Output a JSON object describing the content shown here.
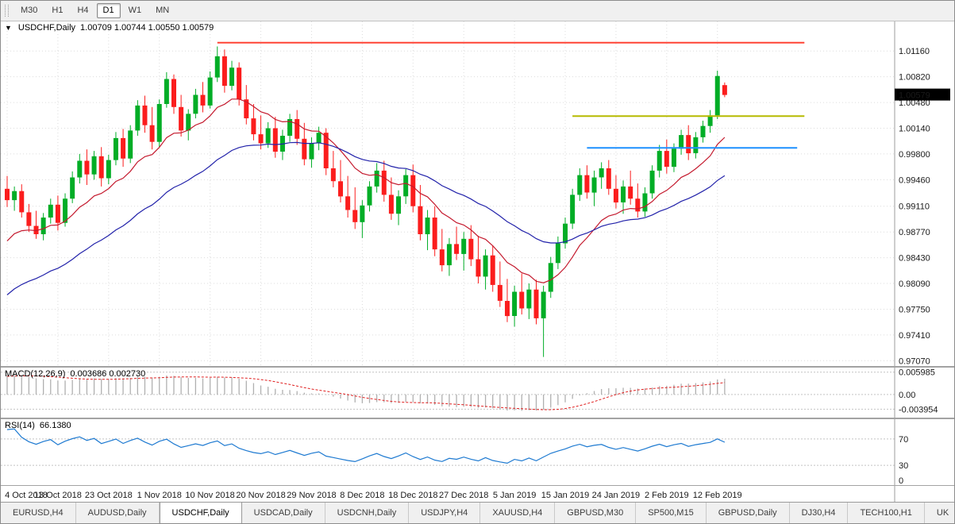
{
  "toolbar": {
    "timeframes": [
      "M30",
      "H1",
      "H4",
      "D1",
      "W1",
      "MN"
    ],
    "active": "D1"
  },
  "chart": {
    "dropdown_arrow": "▼",
    "symbol_label": "USDCHF,Daily",
    "ohlc_text": "1.00709 1.00744 1.00550 1.00579",
    "current_price_label": "1.00579"
  },
  "indicators": {
    "macd": {
      "name": "MACD(12,26,9)",
      "values_text": "0.003686 0.002730",
      "levels": [
        {
          "value": 0.005985,
          "label": "0.005985"
        },
        {
          "value": 0,
          "label": "0.00"
        },
        {
          "value": -0.003954,
          "label": "-0.003954"
        }
      ]
    },
    "rsi": {
      "name": "RSI(14)",
      "value_text": "66.1380",
      "levels": [
        {
          "value": 70,
          "label": "70"
        },
        {
          "value": 30,
          "label": "30"
        },
        {
          "value": 0,
          "label": "0"
        }
      ]
    }
  },
  "tabs": {
    "items": [
      "EURUSD,H4",
      "AUDUSD,Daily",
      "USDCHF,Daily",
      "USDCAD,Daily",
      "USDCNH,Daily",
      "USDJPY,H4",
      "XAUUSD,H4",
      "GBPUSD,M30",
      "SP500,M15",
      "GBPUSD,Daily",
      "DJ30,H4",
      "TECH100,H1",
      "UK"
    ],
    "active": "USDCHF,Daily"
  },
  "chart_data": {
    "type": "candlestick",
    "title": "USDCHF Daily",
    "price_axis": {
      "min": 0.97,
      "max": 1.0155,
      "ticks": [
        {
          "value": 1.0116,
          "label": "1.01160"
        },
        {
          "value": 1.0082,
          "label": "1.00820"
        },
        {
          "value": 1.0048,
          "label": "1.00480"
        },
        {
          "value": 1.0014,
          "label": "1.00140"
        },
        {
          "value": 0.998,
          "label": "0.99800"
        },
        {
          "value": 0.9946,
          "label": "0.99460"
        },
        {
          "value": 0.9911,
          "label": "0.99110"
        },
        {
          "value": 0.9877,
          "label": "0.98770"
        },
        {
          "value": 0.9843,
          "label": "0.98430"
        },
        {
          "value": 0.9809,
          "label": "0.98090"
        },
        {
          "value": 0.9775,
          "label": "0.97750"
        },
        {
          "value": 0.9741,
          "label": "0.97410"
        },
        {
          "value": 0.9707,
          "label": "0.97070"
        }
      ]
    },
    "date_ticks": [
      {
        "index": 0,
        "label": "4 Oct 2018"
      },
      {
        "index": 7,
        "label": "13 Oct 2018"
      },
      {
        "index": 14,
        "label": "23 Oct 2018"
      },
      {
        "index": 21,
        "label": "1 Nov 2018"
      },
      {
        "index": 28,
        "label": "10 Nov 2018"
      },
      {
        "index": 35,
        "label": "20 Nov 2018"
      },
      {
        "index": 42,
        "label": "29 Nov 2018"
      },
      {
        "index": 49,
        "label": "8 Dec 2018"
      },
      {
        "index": 56,
        "label": "18 Dec 2018"
      },
      {
        "index": 63,
        "label": "27 Dec 2018"
      },
      {
        "index": 70,
        "label": "5 Jan 2019"
      },
      {
        "index": 77,
        "label": "15 Jan 2019"
      },
      {
        "index": 84,
        "label": "24 Jan 2019"
      },
      {
        "index": 91,
        "label": "2 Feb 2019"
      },
      {
        "index": 98,
        "label": "12 Feb 2019"
      }
    ],
    "candles_ohlc": [
      [
        0.9934,
        0.9951,
        0.991,
        0.9919
      ],
      [
        0.9919,
        0.9937,
        0.9905,
        0.9931
      ],
      [
        0.9931,
        0.994,
        0.9896,
        0.9903
      ],
      [
        0.9903,
        0.9914,
        0.9877,
        0.9885
      ],
      [
        0.9885,
        0.9905,
        0.9868,
        0.9874
      ],
      [
        0.9874,
        0.9902,
        0.9866,
        0.9896
      ],
      [
        0.9896,
        0.9921,
        0.9888,
        0.9913
      ],
      [
        0.9913,
        0.9925,
        0.9879,
        0.9889
      ],
      [
        0.9889,
        0.9928,
        0.9884,
        0.9921
      ],
      [
        0.9921,
        0.9957,
        0.9915,
        0.9949
      ],
      [
        0.9949,
        0.998,
        0.9941,
        0.9971
      ],
      [
        0.9971,
        0.9986,
        0.9939,
        0.9953
      ],
      [
        0.9953,
        0.9984,
        0.9946,
        0.9977
      ],
      [
        0.9977,
        0.9989,
        0.9937,
        0.9948
      ],
      [
        0.9948,
        0.9979,
        0.994,
        0.9972
      ],
      [
        0.9972,
        1.0009,
        0.9965,
        1.0001
      ],
      [
        1.0001,
        1.0013,
        0.9963,
        0.9974
      ],
      [
        0.9974,
        1.0018,
        0.9968,
        1.0011
      ],
      [
        1.0011,
        1.0051,
        1.0004,
        1.0044
      ],
      [
        1.0044,
        1.0057,
        1.0008,
        1.0018
      ],
      [
        1.0018,
        1.0042,
        0.9986,
        0.9996
      ],
      [
        0.9996,
        1.0052,
        0.9989,
        1.0046
      ],
      [
        1.0046,
        1.0088,
        1.0041,
        1.0079
      ],
      [
        1.0079,
        1.0085,
        1.0033,
        1.0042
      ],
      [
        1.0042,
        1.0058,
        1.0003,
        1.0011
      ],
      [
        1.0011,
        1.0039,
        0.9998,
        1.0033
      ],
      [
        1.0033,
        1.0066,
        1.0027,
        1.0058
      ],
      [
        1.0058,
        1.0075,
        1.0035,
        1.0044
      ],
      [
        1.0044,
        1.0089,
        1.004,
        1.0081
      ],
      [
        1.0081,
        1.0122,
        1.0075,
        1.0109
      ],
      [
        1.0109,
        1.0118,
        1.0061,
        1.007
      ],
      [
        1.007,
        1.0103,
        1.0064,
        1.0094
      ],
      [
        1.0094,
        1.0101,
        1.0044,
        1.0052
      ],
      [
        1.0052,
        1.0071,
        1.0019,
        1.0027
      ],
      [
        1.0027,
        1.0046,
        0.9998,
        1.0006
      ],
      [
        1.0006,
        1.0031,
        0.9986,
        0.9994
      ],
      [
        0.9994,
        1.0022,
        0.9988,
        1.0014
      ],
      [
        1.0014,
        1.0029,
        0.9975,
        0.9983
      ],
      [
        0.9983,
        1.0012,
        0.9972,
        1.0004
      ],
      [
        1.0004,
        1.0033,
        0.9996,
        1.0026
      ],
      [
        1.0026,
        1.0038,
        0.9992,
        1.0
      ],
      [
        1.0,
        1.0021,
        0.9965,
        0.9973
      ],
      [
        0.9973,
        1.0002,
        0.9962,
        0.9994
      ],
      [
        0.9994,
        1.0016,
        0.9985,
        1.0008
      ],
      [
        1.0008,
        1.0014,
        0.9952,
        0.9961
      ],
      [
        0.9961,
        0.9984,
        0.9936,
        0.9944
      ],
      [
        0.9944,
        0.9972,
        0.9916,
        0.9924
      ],
      [
        0.9924,
        0.9951,
        0.9896,
        0.9906
      ],
      [
        0.9906,
        0.9936,
        0.9881,
        0.989
      ],
      [
        0.989,
        0.9919,
        0.9869,
        0.9912
      ],
      [
        0.9912,
        0.9944,
        0.9904,
        0.9937
      ],
      [
        0.9937,
        0.9968,
        0.9929,
        0.9958
      ],
      [
        0.9958,
        0.9971,
        0.9917,
        0.9926
      ],
      [
        0.9926,
        0.9949,
        0.9893,
        0.9901
      ],
      [
        0.9901,
        0.9932,
        0.9886,
        0.9924
      ],
      [
        0.9924,
        0.996,
        0.9914,
        0.9952
      ],
      [
        0.9952,
        0.9966,
        0.9903,
        0.9911
      ],
      [
        0.9911,
        0.9939,
        0.9866,
        0.9874
      ],
      [
        0.9874,
        0.9906,
        0.9853,
        0.9896
      ],
      [
        0.9896,
        0.9911,
        0.9845,
        0.9854
      ],
      [
        0.9854,
        0.9881,
        0.9825,
        0.9833
      ],
      [
        0.9833,
        0.9869,
        0.9819,
        0.9861
      ],
      [
        0.9861,
        0.9884,
        0.984,
        0.9848
      ],
      [
        0.9848,
        0.9877,
        0.9826,
        0.9868
      ],
      [
        0.9868,
        0.9886,
        0.9832,
        0.9841
      ],
      [
        0.9841,
        0.9872,
        0.9809,
        0.9818
      ],
      [
        0.9818,
        0.9854,
        0.9801,
        0.9846
      ],
      [
        0.9846,
        0.9859,
        0.9798,
        0.9807
      ],
      [
        0.9807,
        0.9838,
        0.9778,
        0.9786
      ],
      [
        0.9786,
        0.9815,
        0.9758,
        0.9766
      ],
      [
        0.9766,
        0.9806,
        0.9752,
        0.9798
      ],
      [
        0.9798,
        0.9822,
        0.9768,
        0.9776
      ],
      [
        0.9776,
        0.9809,
        0.9762,
        0.9801
      ],
      [
        0.9801,
        0.9814,
        0.9755,
        0.9763
      ],
      [
        0.9763,
        0.9806,
        0.9712,
        0.9798
      ],
      [
        0.9798,
        0.9844,
        0.979,
        0.9836
      ],
      [
        0.9836,
        0.9871,
        0.9828,
        0.9862
      ],
      [
        0.9862,
        0.9896,
        0.9855,
        0.9888
      ],
      [
        0.9888,
        0.9934,
        0.9881,
        0.9926
      ],
      [
        0.9926,
        0.9961,
        0.9918,
        0.9952
      ],
      [
        0.9952,
        0.9965,
        0.9921,
        0.9929
      ],
      [
        0.9929,
        0.9958,
        0.9911,
        0.9949
      ],
      [
        0.9949,
        0.9969,
        0.9934,
        0.9961
      ],
      [
        0.9961,
        0.9972,
        0.9926,
        0.9934
      ],
      [
        0.9934,
        0.9952,
        0.9908,
        0.9916
      ],
      [
        0.9916,
        0.9945,
        0.9901,
        0.9937
      ],
      [
        0.9937,
        0.9958,
        0.9913,
        0.9921
      ],
      [
        0.9921,
        0.9941,
        0.9896,
        0.9904
      ],
      [
        0.9904,
        0.9936,
        0.9897,
        0.9928
      ],
      [
        0.9928,
        0.9965,
        0.9921,
        0.9958
      ],
      [
        0.9958,
        0.9992,
        0.9949,
        0.9984
      ],
      [
        0.9984,
        0.9999,
        0.9954,
        0.9963
      ],
      [
        0.9963,
        0.9994,
        0.9956,
        0.9987
      ],
      [
        0.9987,
        1.0012,
        0.9979,
        1.0005
      ],
      [
        1.0005,
        1.0018,
        0.9972,
        0.9981
      ],
      [
        0.9981,
        1.0009,
        0.9974,
        1.0002
      ],
      [
        1.0002,
        1.0024,
        0.9995,
        1.0017
      ],
      [
        1.0017,
        1.0038,
        1.0008,
        1.0031
      ],
      [
        1.0031,
        1.009,
        1.0026,
        1.0083
      ],
      [
        1.00709,
        1.00744,
        1.0055,
        1.00579
      ]
    ],
    "warmup_closes": [
      0.9608,
      0.9615,
      0.9622,
      0.9631,
      0.9625,
      0.9638,
      0.965,
      0.9644,
      0.9659,
      0.9671,
      0.9665,
      0.968,
      0.9694,
      0.9688,
      0.9702,
      0.9717,
      0.971,
      0.9726,
      0.9741,
      0.9735,
      0.975,
      0.9764,
      0.9757,
      0.9772,
      0.9788,
      0.9781,
      0.9796,
      0.9812,
      0.9806,
      0.9821,
      0.9837,
      0.983,
      0.9846,
      0.9862,
      0.9855,
      0.9871,
      0.9888,
      0.988,
      0.9897,
      0.9914
    ],
    "moving_averages": [
      {
        "name": "ma-fast",
        "period": 13,
        "method": "ema",
        "color": "#c41a2e"
      },
      {
        "name": "ma-slow",
        "period": 34,
        "method": "ema",
        "color": "#2222aa"
      }
    ],
    "trendlines": [
      {
        "name": "resistance-line",
        "price": 1.0127,
        "start_index": 29,
        "end_index": 110,
        "color": "#ff4334"
      },
      {
        "name": "minor-resistance-line",
        "price": 1.003,
        "start_index": 78,
        "end_index": 110,
        "color": "#b6ba00"
      },
      {
        "name": "support-line",
        "price": 0.9988,
        "start_index": 80,
        "end_index": 109,
        "color": "#1e90ff"
      }
    ],
    "macd_axis": {
      "min": -0.0062,
      "max": 0.0072
    },
    "rsi_axis": {
      "min": 0,
      "max": 100
    },
    "colors": {
      "up": "#00ad26",
      "down": "#fb1d1d",
      "grid": "#dcdcdc",
      "level_dash": "#c4c4c4",
      "axis_line": "#9c9c9c",
      "macd_hist": "#b0b0b0",
      "macd_signal": "#e02020",
      "rsi_line": "#1e7ad1",
      "price_tag_bg": "#000000",
      "price_tag_text": "#ffffff"
    }
  }
}
